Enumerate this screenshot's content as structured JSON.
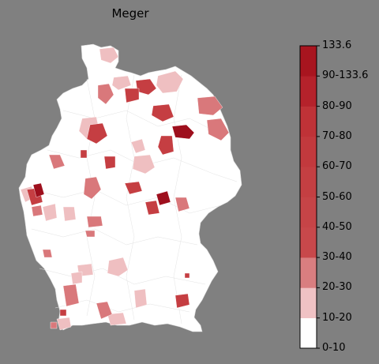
{
  "title": "Meger",
  "legend": {
    "labels": [
      "0-10",
      "10-20",
      "20-30",
      "30-40",
      "40-50",
      "50-60",
      "60-70",
      "70-80",
      "80-90",
      "90-133.6",
      "133.6"
    ],
    "colors": [
      "#ffffff",
      "#f0c2c4",
      "#d97e80",
      "#c8484b",
      "#c64447",
      "#c43f42",
      "#c2393d",
      "#bf3237",
      "#b5222b",
      "#a8151f",
      "#9b0d1a"
    ]
  },
  "map_colors": {
    "none": "#ffffff",
    "light": "#efbfc1",
    "mid": "#d9787b",
    "strong": "#c53e42",
    "dark": "#9e0f1d"
  }
}
